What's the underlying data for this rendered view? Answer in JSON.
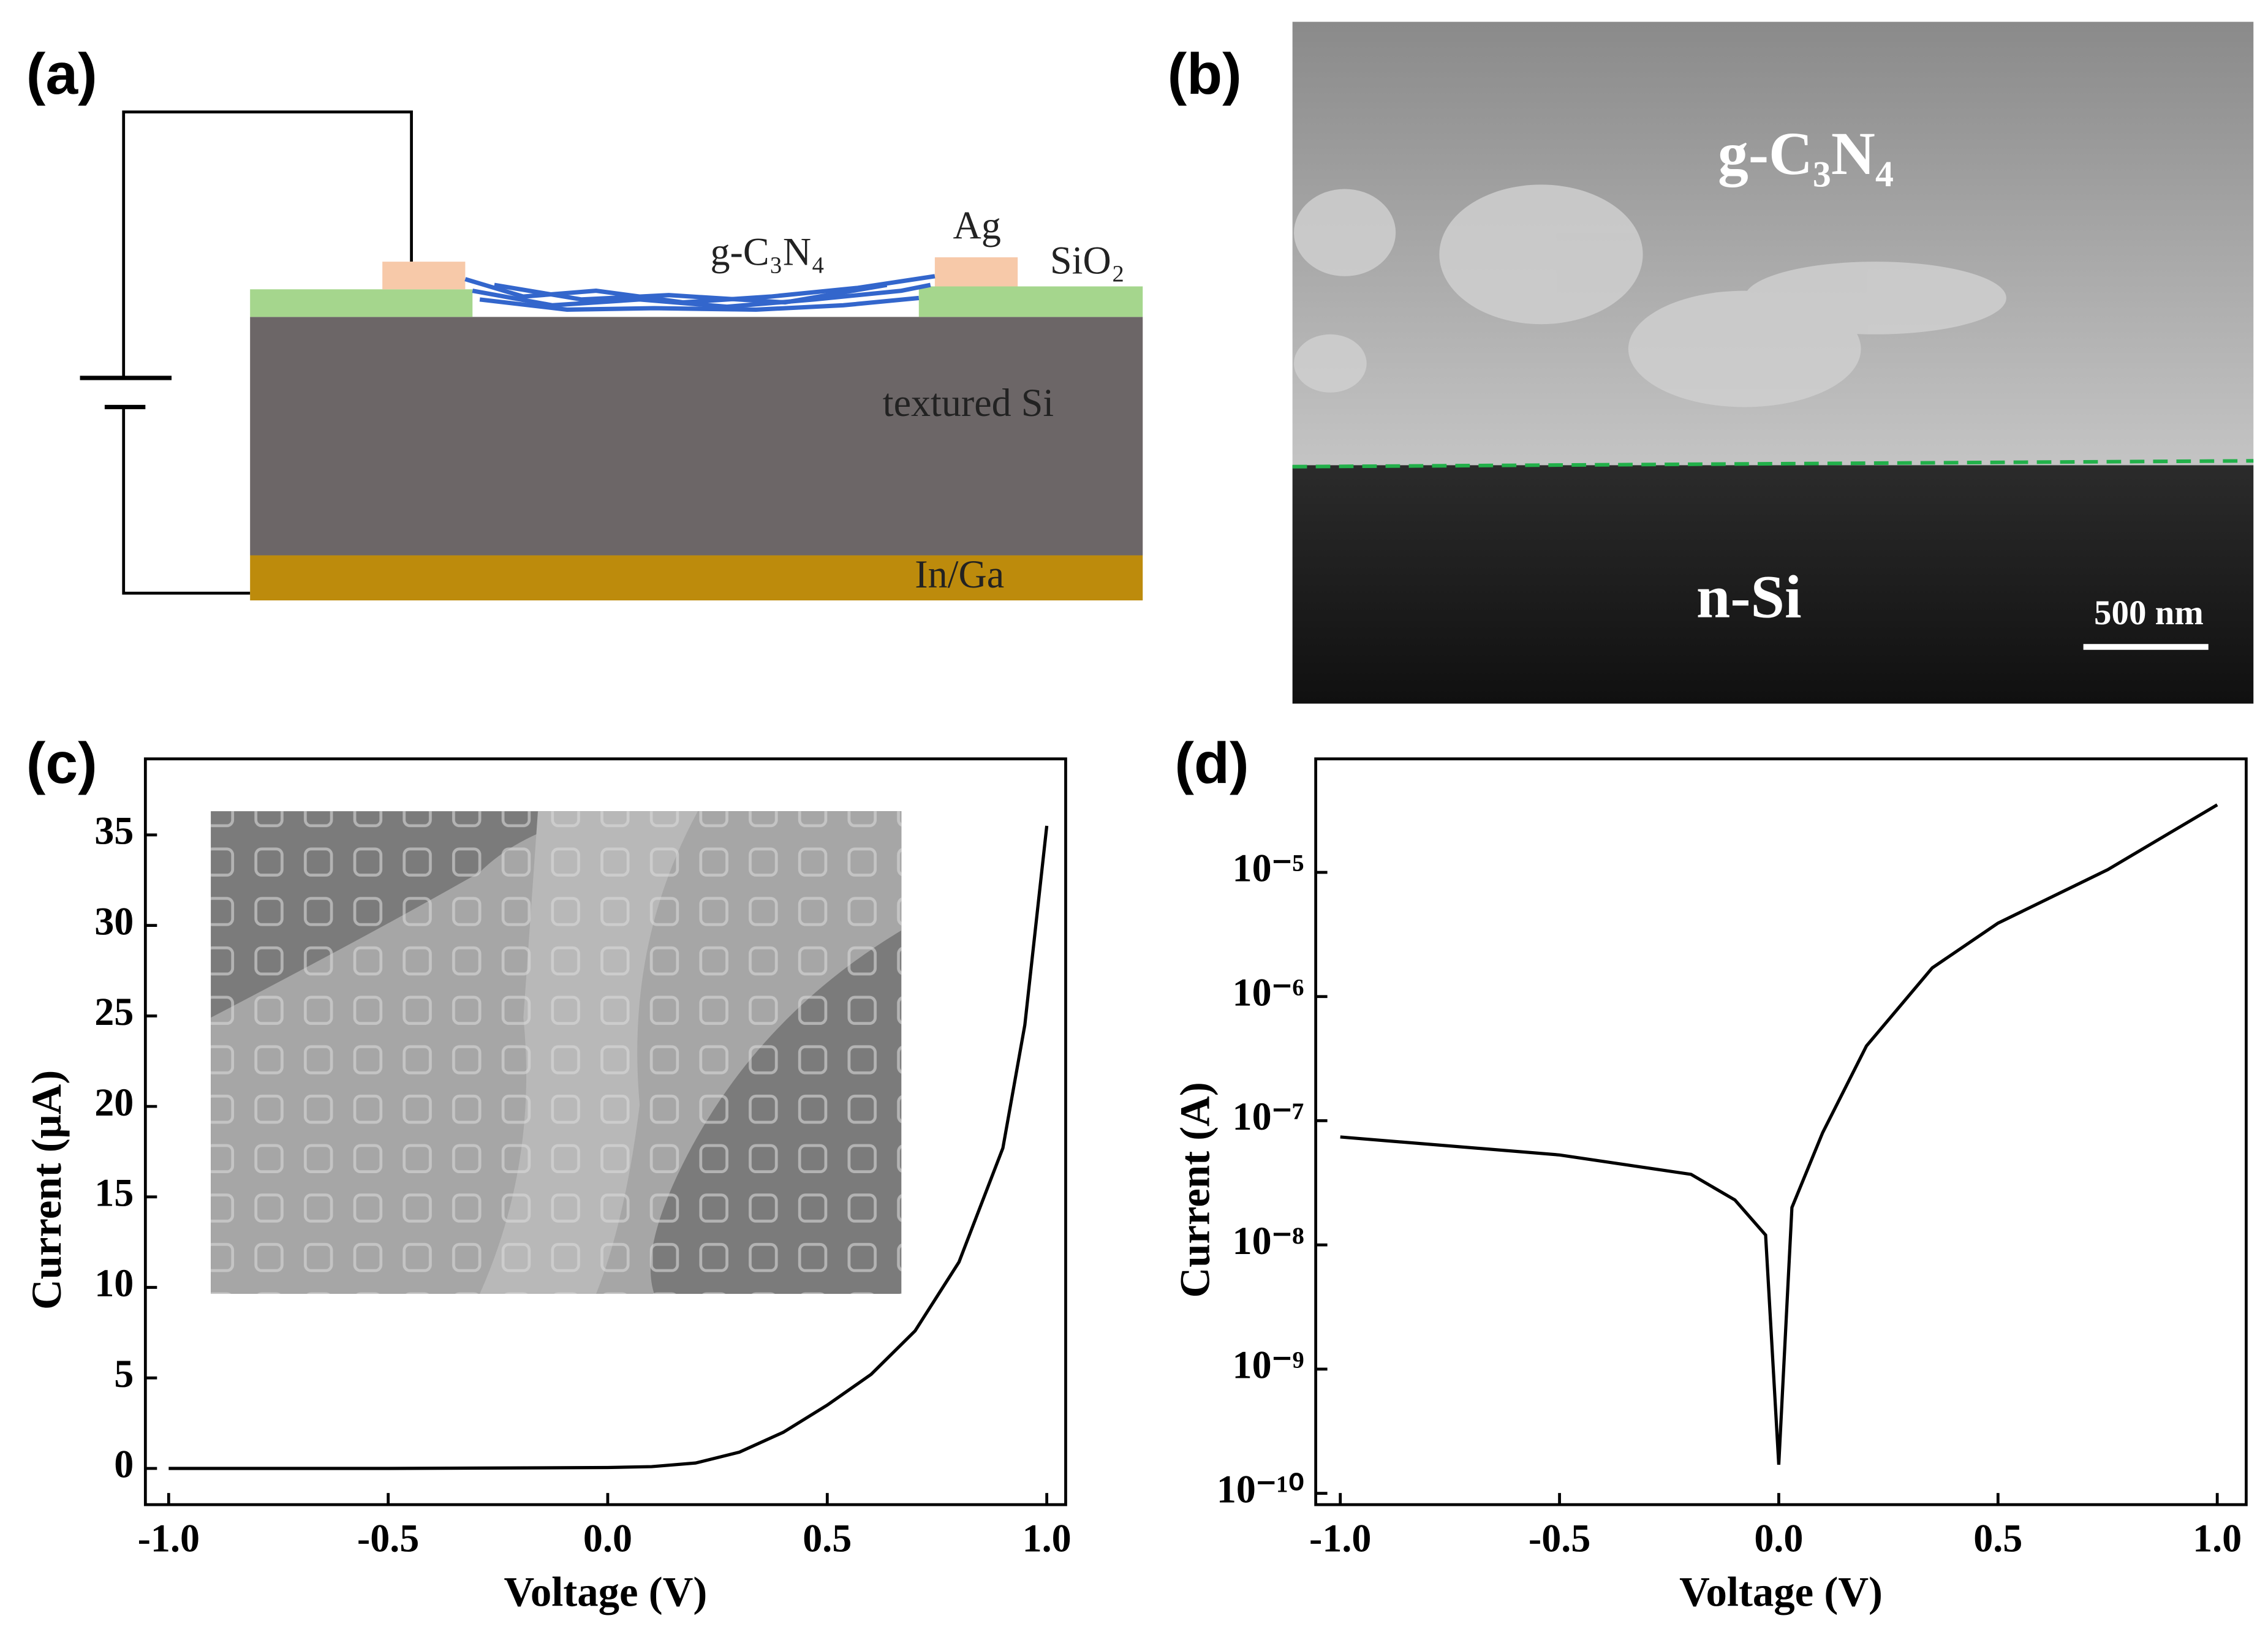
{
  "panel_labels": [
    "(a)",
    "(b)",
    "(c)",
    "(d)"
  ],
  "diagram": {
    "contact_label": "Ag",
    "oxide_label": "SiO₂",
    "film_label": "g-C₃N₄",
    "substrate_label": "textured Si",
    "back_contact_label": "In/Ga"
  },
  "sem_image": {
    "film_label": "g-C₃N₄",
    "substrate_label": "n-Si",
    "scale_bar_label": "500 nm"
  },
  "chart_data": [
    {
      "type": "line",
      "xlabel": "Voltage (V)",
      "ylabel": "Current (μA)",
      "yscale": "linear",
      "color": "#000000",
      "x": [
        -1.0,
        -0.5,
        0.0,
        0.1,
        0.2,
        0.3,
        0.4,
        0.5,
        0.6,
        0.7,
        0.8,
        0.9,
        0.95,
        1.0
      ],
      "values": [
        0,
        0,
        0.05,
        0.1,
        0.3,
        0.9,
        2.0,
        3.5,
        5.2,
        7.6,
        11.4,
        17.7,
        24.5,
        35.5
      ],
      "xlim": [
        -1.053,
        1.043
      ],
      "ylim": [
        -2.0,
        39.2
      ],
      "xticks": [
        {
          "value": -1,
          "label": "-1.0"
        },
        -0.5,
        {
          "value": 0,
          "label": "0.0"
        },
        0.5,
        {
          "value": 1,
          "label": "1.0"
        }
      ],
      "yticks": [
        0,
        5,
        10,
        15,
        20,
        25,
        30,
        35
      ]
    },
    {
      "type": "line",
      "xlabel": "Voltage (V)",
      "ylabel": "Current (A)",
      "yscale": "log",
      "color": "#000000",
      "x": [
        -1.0,
        -0.5,
        -0.2,
        -0.1,
        -0.03,
        0.0,
        0.03,
        0.1,
        0.2,
        0.35,
        0.5,
        0.75,
        1.0
      ],
      "values": [
        7.4e-08,
        5.3e-08,
        3.7e-08,
        2.3e-08,
        1.2e-08,
        1.7e-10,
        2e-08,
        8e-08,
        4e-07,
        1.7e-06,
        3.9e-06,
        1.05e-05,
        3.5e-05
      ],
      "xlim": [
        -1.056,
        1.066
      ],
      "ylim": [
        8.1e-11,
        8.2e-05
      ],
      "xticks": [
        {
          "value": -1,
          "label": "-1.0"
        },
        -0.5,
        {
          "value": 0,
          "label": "0.0"
        },
        0.5,
        {
          "value": 1,
          "label": "1.0"
        }
      ],
      "yticks": [
        {
          "value": 1e-10,
          "label": "10⁻¹⁰"
        },
        {
          "value": 1e-09,
          "label": "10⁻⁹"
        },
        {
          "value": 1e-08,
          "label": "10⁻⁸"
        },
        {
          "value": 1e-07,
          "label": "10⁻⁷"
        },
        {
          "value": 1e-06,
          "label": "10⁻⁶"
        },
        {
          "value": 1e-05,
          "label": "10⁻⁵"
        }
      ]
    }
  ]
}
